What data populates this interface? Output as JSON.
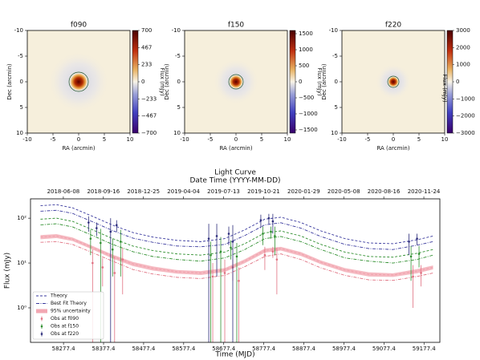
{
  "chart_data": [
    {
      "type": "heatmap",
      "title": "f090",
      "xlabel": "RA (arcmin)",
      "ylabel": "Dec (arcmin)",
      "colorbar_label": "Flux (mJy)",
      "xlim": [
        -10,
        10
      ],
      "ylim": [
        10,
        -10
      ],
      "xticks": [
        -10,
        -5,
        0,
        5,
        10
      ],
      "yticks": [
        -10,
        -5,
        0,
        5,
        10
      ],
      "clim": [
        -700,
        700
      ],
      "cticks": [
        700,
        467,
        233,
        0,
        {
          "value": -233,
          "label": "−233"
        },
        {
          "value": -467,
          "label": "−467"
        },
        {
          "value": -700,
          "label": "−700"
        }
      ]
    },
    {
      "type": "heatmap",
      "title": "f150",
      "xlabel": "RA (arcmin)",
      "ylabel": "Dec (arcmin)",
      "colorbar_label": "Flux (mJy)",
      "xlim": [
        -10,
        10
      ],
      "ylim": [
        10,
        -10
      ],
      "xticks": [
        -10,
        -5,
        0,
        5,
        10
      ],
      "yticks": [
        -10,
        -5,
        0,
        5,
        10
      ],
      "clim": [
        -1600,
        1600
      ],
      "cticks": [
        1500,
        1000,
        500,
        0,
        {
          "value": -500,
          "label": "−500"
        },
        {
          "value": -1000,
          "label": "−1000"
        },
        {
          "value": -1500,
          "label": "−1500"
        }
      ]
    },
    {
      "type": "heatmap",
      "title": "f220",
      "xlabel": "RA (arcmin)",
      "ylabel": "Dec (arcmin)",
      "colorbar_label": "Flux (mJy)",
      "xlim": [
        -10,
        10
      ],
      "ylim": [
        10,
        -10
      ],
      "xticks": [
        -10,
        -5,
        0,
        5,
        10
      ],
      "yticks": [
        -10,
        -5,
        0,
        5,
        10
      ],
      "clim": [
        -3000,
        3000
      ],
      "cticks": [
        3000,
        2000,
        1000,
        0,
        {
          "value": -1000,
          "label": "−1000"
        },
        {
          "value": -2000,
          "label": "−2000"
        },
        {
          "value": -3000,
          "label": "−3000"
        }
      ]
    },
    {
      "type": "line",
      "title": "Light Curve",
      "x2label": "Date Time (YYYY-MM-DD)",
      "xlabel": "Time (MJD)",
      "ylabel": "Flux (mJy)",
      "log_y": true,
      "legend": "lower left",
      "xlim": [
        58195,
        59217
      ],
      "ylim": [
        0.17,
        270
      ],
      "xticks": [
        58277.4,
        58377.4,
        58477.4,
        58577.4,
        58677.4,
        58777.4,
        58877.4,
        58977.4,
        59077.4,
        59177.4
      ],
      "x2ticks": [
        {
          "value": 58277,
          "label": "2018-06-08"
        },
        {
          "value": 58377,
          "label": "2018-09-16"
        },
        {
          "value": 58477,
          "label": "2018-12-25"
        },
        {
          "value": 58577,
          "label": "2019-04-04"
        },
        {
          "value": 58677,
          "label": "2019-07-13"
        },
        {
          "value": 58777,
          "label": "2019-10-21"
        },
        {
          "value": 58877,
          "label": "2020-01-29"
        },
        {
          "value": 58977,
          "label": "2020-05-08"
        },
        {
          "value": 59077,
          "label": "2020-08-16"
        },
        {
          "value": 59177,
          "label": "2020-11-24"
        }
      ],
      "yticks": [
        {
          "value": 1,
          "label": "10⁰"
        },
        {
          "value": 10,
          "label": "10¹"
        },
        {
          "value": 100,
          "label": "10²"
        }
      ],
      "x": [
        58220,
        58260,
        58300,
        58350,
        58400,
        58450,
        58500,
        58560,
        58620,
        58680,
        58730,
        58780,
        58820,
        58870,
        58920,
        58980,
        59040,
        59100,
        59160,
        59200
      ],
      "series": [
        {
          "name": "Theory",
          "style": "dashed",
          "color": "#3a3a9e",
          "curves": [
            {
              "color": "#3a3a9e",
              "values": [
                190,
                200,
                170,
                110,
                70,
                48,
                38,
                32,
                30,
                35,
                55,
                95,
                105,
                80,
                52,
                35,
                28,
                27,
                33,
                40
              ]
            },
            {
              "color": "#2f8f2f",
              "values": [
                95,
                100,
                85,
                55,
                35,
                24,
                19,
                16,
                15,
                17.5,
                27,
                47,
                52,
                40,
                26,
                17.5,
                14,
                13.5,
                16.5,
                20
              ]
            },
            {
              "color": "#e07080",
              "values": [
                38,
                40,
                34,
                22,
                14,
                9.6,
                7.6,
                6.4,
                6,
                7,
                11,
                19,
                21,
                16,
                10.4,
                7,
                5.6,
                5.4,
                6.6,
                8
              ]
            }
          ]
        },
        {
          "name": "Best Fit Theory",
          "style": "dashdot",
          "color": "#3a3a9e",
          "curves": [
            {
              "color": "#3a3a9e",
              "values": [
                143,
                150,
                128,
                83,
                53,
                36,
                29,
                24,
                23,
                26,
                41,
                71,
                79,
                60,
                39,
                26,
                21,
                20,
                25,
                30
              ]
            },
            {
              "color": "#2f8f2f",
              "values": [
                71,
                75,
                64,
                41,
                26,
                18,
                14,
                12,
                11,
                13,
                20,
                35,
                39,
                30,
                20,
                13,
                11,
                10,
                12,
                15
              ]
            },
            {
              "color": "#e07080",
              "values": [
                29,
                30,
                26,
                17,
                11,
                7.2,
                5.7,
                4.8,
                4.5,
                5.3,
                8.3,
                14,
                16,
                12,
                7.8,
                5.3,
                4.2,
                4.1,
                5,
                6
              ]
            }
          ]
        },
        {
          "name": "95% uncertainty",
          "style": "band",
          "color": "#f2a7b2",
          "lower": [
            34,
            36,
            31,
            20,
            12.6,
            8.6,
            6.8,
            5.8,
            5.4,
            6.3,
            9.9,
            17,
            19,
            14.4,
            9.4,
            6.3,
            5,
            4.9,
            5.9,
            7.2
          ],
          "upper": [
            42,
            44,
            37,
            24,
            15.4,
            10.6,
            8.4,
            7,
            6.6,
            7.7,
            12.1,
            21,
            23,
            17.6,
            11.4,
            7.7,
            6.2,
            5.9,
            7.3,
            8.8
          ]
        },
        {
          "name": "Obs at f090",
          "style": "points",
          "color": "#e07080",
          "x": [
            58350,
            58375,
            58405,
            58425,
            58650,
            58680,
            58700,
            58715,
            58780,
            58800,
            58810,
            59150,
            59170
          ],
          "values": [
            10,
            8,
            6,
            12,
            5,
            6,
            8,
            4,
            15,
            18,
            12,
            5,
            6
          ],
          "errors": [
            10,
            5,
            8,
            10,
            5,
            6,
            4,
            4,
            8,
            5,
            10,
            4,
            3
          ]
        },
        {
          "name": "Obs at f150",
          "style": "points",
          "color": "#2f8f2f",
          "x": [
            58345,
            58370,
            58400,
            58420,
            58645,
            58670,
            58695,
            58710,
            58775,
            58795,
            58805,
            59145,
            59165
          ],
          "values": [
            35,
            28,
            20,
            30,
            15,
            18,
            22,
            14,
            45,
            50,
            40,
            14,
            16
          ],
          "errors": [
            20,
            30,
            15,
            25,
            15,
            20,
            10,
            14,
            20,
            15,
            25,
            10,
            8
          ]
        },
        {
          "name": "Obs at f220",
          "style": "points",
          "color": "#2b2b7a",
          "x": [
            58340,
            58360,
            58395,
            58410,
            58640,
            58660,
            58690,
            58700,
            58770,
            58790,
            58800,
            59140,
            59160
          ],
          "values": [
            80,
            60,
            50,
            70,
            35,
            40,
            45,
            30,
            90,
            100,
            85,
            30,
            35
          ],
          "errors": [
            30,
            20,
            50,
            20,
            40,
            35,
            20,
            40,
            30,
            25,
            40,
            15,
            10
          ]
        }
      ]
    }
  ]
}
